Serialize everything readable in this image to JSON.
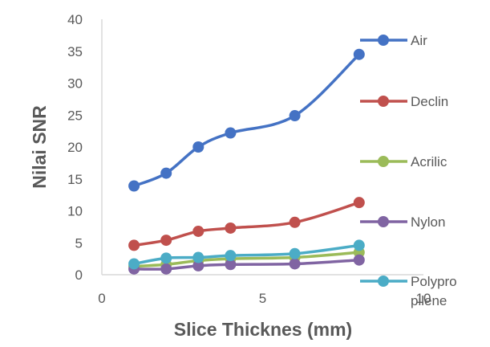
{
  "chart_data": {
    "type": "line",
    "title": "",
    "xlabel": "Slice Thicknes (mm)",
    "ylabel": "Nilai SNR",
    "xlim": [
      0,
      10
    ],
    "ylim": [
      0,
      40
    ],
    "xticks": [
      0,
      5,
      10
    ],
    "yticks": [
      0,
      5,
      10,
      15,
      20,
      25,
      30,
      35,
      40
    ],
    "grid": false,
    "legend_position": "right",
    "x": [
      1,
      2,
      3,
      4,
      6,
      8
    ],
    "series": [
      {
        "name": "Air",
        "color": "#4472c4",
        "values": [
          13.9,
          15.9,
          20.0,
          22.2,
          24.9,
          34.5
        ]
      },
      {
        "name": "Declin",
        "color": "#c0504d",
        "values": [
          4.6,
          5.4,
          6.8,
          7.3,
          8.2,
          11.3
        ]
      },
      {
        "name": "Acrilic",
        "color": "#9bbb59",
        "values": [
          1.3,
          1.6,
          2.2,
          2.5,
          2.7,
          3.5
        ]
      },
      {
        "name": "Nylon",
        "color": "#8064a2",
        "values": [
          0.9,
          0.9,
          1.4,
          1.6,
          1.7,
          2.3
        ]
      },
      {
        "name": "Polypro pilene",
        "color": "#4bacc6",
        "values": [
          1.7,
          2.6,
          2.7,
          3.0,
          3.3,
          4.6
        ]
      }
    ]
  }
}
